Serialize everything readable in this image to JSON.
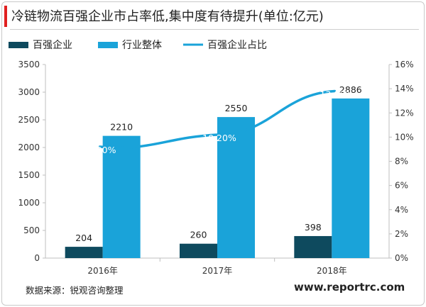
{
  "title": "冷链物流百强企业市占率低,集中度有待提升(单位:亿元)",
  "source": "数据来源：锐观咨询整理",
  "watermark": "www.reportrc.com",
  "chart_data": {
    "type": "bar",
    "title": "冷链物流百强企业市占率低,集中度有待提升(单位:亿元)",
    "categories": [
      "2016年",
      "2017年",
      "2018年"
    ],
    "series": [
      {
        "name": "百强企业",
        "type": "bar",
        "axis": "left",
        "color": "#0e4a5e",
        "values": [
          204,
          260,
          398
        ]
      },
      {
        "name": "行业整体",
        "type": "bar",
        "axis": "left",
        "color": "#1aa3d9",
        "values": [
          2210,
          2550,
          2886
        ]
      },
      {
        "name": "百强企业占比",
        "type": "line",
        "axis": "right",
        "color": "#1aa3d9",
        "values": [
          9.2,
          10.2,
          13.8
        ]
      }
    ],
    "y_left": {
      "min": 0,
      "max": 3500,
      "ticks": [
        0,
        500,
        1000,
        1500,
        2000,
        2500,
        3000,
        3500
      ]
    },
    "y_right": {
      "min": 0,
      "max": 16,
      "unit": "%",
      "ticks": [
        0,
        2,
        4,
        6,
        8,
        10,
        12,
        14,
        16
      ]
    },
    "bar_labels": [
      [
        "204",
        "260",
        "398"
      ],
      [
        "2210",
        "2550",
        "2886"
      ]
    ],
    "line_labels": [
      "9.20%",
      "10.20%",
      "13.80%"
    ],
    "legend_position": "top-left",
    "grid": false
  }
}
